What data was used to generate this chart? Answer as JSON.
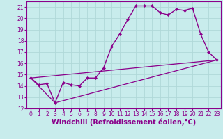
{
  "xlabel": "Windchill (Refroidissement éolien,°C)",
  "bg_color": "#c8ecec",
  "grid_color": "#b0d8d8",
  "line_color": "#8b008b",
  "xlim": [
    -0.5,
    23.5
  ],
  "ylim": [
    12,
    21.5
  ],
  "xticks": [
    0,
    1,
    2,
    3,
    4,
    5,
    6,
    7,
    8,
    9,
    10,
    11,
    12,
    13,
    14,
    15,
    16,
    17,
    18,
    19,
    20,
    21,
    22,
    23
  ],
  "yticks": [
    12,
    13,
    14,
    15,
    16,
    17,
    18,
    19,
    20,
    21
  ],
  "line1_x": [
    0,
    1,
    2,
    3,
    4,
    5,
    6,
    7,
    8,
    9,
    10,
    11,
    12,
    13,
    14,
    15,
    16,
    17,
    18,
    19,
    20,
    21,
    22,
    23
  ],
  "line1_y": [
    14.7,
    14.1,
    14.2,
    12.5,
    14.3,
    14.1,
    14.0,
    14.7,
    14.7,
    15.6,
    17.5,
    18.6,
    19.9,
    21.1,
    21.1,
    21.1,
    20.5,
    20.3,
    20.8,
    20.7,
    20.9,
    18.6,
    17.0,
    16.3
  ],
  "line2_x": [
    0,
    3,
    23
  ],
  "line2_y": [
    14.7,
    12.5,
    16.3
  ],
  "line3_x": [
    0,
    23
  ],
  "line3_y": [
    14.7,
    16.3
  ],
  "xlabel_fontsize": 7,
  "tick_fontsize": 5.5
}
